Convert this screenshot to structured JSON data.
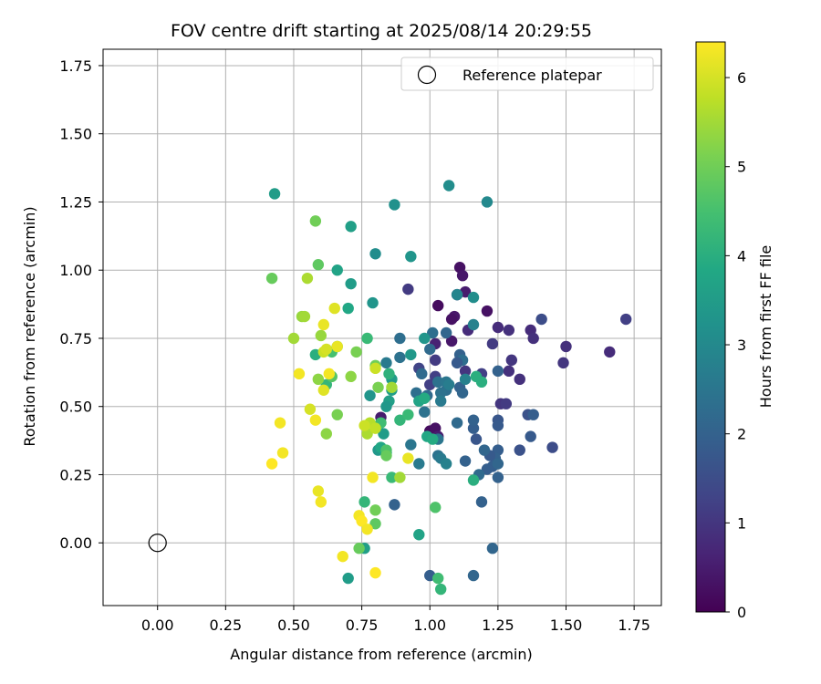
{
  "chart_data": {
    "type": "scatter",
    "title": "FOV centre drift starting at 2025/08/14 20:29:55",
    "xlabel": "Angular distance from reference (arcmin)",
    "ylabel": "Rotation from reference (arcmin)",
    "xlim": [
      -0.2,
      1.85
    ],
    "ylim": [
      -0.23,
      1.81
    ],
    "xticks": [
      0.0,
      0.25,
      0.5,
      0.75,
      1.0,
      1.25,
      1.5,
      1.75
    ],
    "xtick_labels": [
      "0.00",
      "0.25",
      "0.50",
      "0.75",
      "1.00",
      "1.25",
      "1.50",
      "1.75"
    ],
    "yticks": [
      0.0,
      0.25,
      0.5,
      0.75,
      1.0,
      1.25,
      1.5,
      1.75
    ],
    "ytick_labels": [
      "0.00",
      "0.25",
      "0.50",
      "0.75",
      "1.00",
      "1.25",
      "1.50",
      "1.75"
    ],
    "grid": true,
    "legend": {
      "placement": "upper right",
      "entries": [
        {
          "label": "Reference platepar",
          "marker": "open-circle"
        }
      ]
    },
    "reference_point": {
      "x": 0.0,
      "y": 0.0
    },
    "colorbar": {
      "label": "Hours from first FF file",
      "colormap": "viridis",
      "range": [
        0,
        6.4
      ],
      "ticks": [
        0,
        1,
        2,
        3,
        4,
        5,
        6
      ],
      "tick_labels": [
        "0",
        "1",
        "2",
        "3",
        "4",
        "5",
        "6"
      ]
    },
    "points": [
      {
        "x": 1.11,
        "y": 1.01,
        "h": 0.3
      },
      {
        "x": 1.12,
        "y": 0.98,
        "h": 0.4
      },
      {
        "x": 1.13,
        "y": 0.92,
        "h": 0.5
      },
      {
        "x": 1.09,
        "y": 0.83,
        "h": 0.4
      },
      {
        "x": 1.08,
        "y": 0.82,
        "h": 0.3
      },
      {
        "x": 1.03,
        "y": 0.87,
        "h": 0.2
      },
      {
        "x": 1.21,
        "y": 0.85,
        "h": 0.3
      },
      {
        "x": 1.08,
        "y": 0.74,
        "h": 0.4
      },
      {
        "x": 1.02,
        "y": 0.73,
        "h": 0.6
      },
      {
        "x": 1.0,
        "y": 0.41,
        "h": 0.2
      },
      {
        "x": 1.02,
        "y": 0.42,
        "h": 0.3
      },
      {
        "x": 1.03,
        "y": 0.39,
        "h": 0.5
      },
      {
        "x": 0.82,
        "y": 0.46,
        "h": 0.5
      },
      {
        "x": 1.1,
        "y": 0.91,
        "h": 0.7
      },
      {
        "x": 1.14,
        "y": 0.78,
        "h": 0.8
      },
      {
        "x": 1.25,
        "y": 0.79,
        "h": 0.8
      },
      {
        "x": 1.29,
        "y": 0.78,
        "h": 0.9
      },
      {
        "x": 1.37,
        "y": 0.78,
        "h": 0.8
      },
      {
        "x": 1.38,
        "y": 0.75,
        "h": 0.9
      },
      {
        "x": 1.29,
        "y": 0.63,
        "h": 0.9
      },
      {
        "x": 1.3,
        "y": 0.67,
        "h": 1.0
      },
      {
        "x": 1.33,
        "y": 0.6,
        "h": 0.9
      },
      {
        "x": 1.23,
        "y": 0.73,
        "h": 1.1
      },
      {
        "x": 1.19,
        "y": 0.62,
        "h": 1.2
      },
      {
        "x": 1.13,
        "y": 0.63,
        "h": 1.0
      },
      {
        "x": 1.02,
        "y": 0.67,
        "h": 1.1
      },
      {
        "x": 1.02,
        "y": 0.61,
        "h": 1.2
      },
      {
        "x": 0.96,
        "y": 0.64,
        "h": 1.3
      },
      {
        "x": 0.92,
        "y": 0.93,
        "h": 1.1
      },
      {
        "x": 1.0,
        "y": 0.58,
        "h": 1.2
      },
      {
        "x": 1.26,
        "y": 0.51,
        "h": 1.0
      },
      {
        "x": 1.28,
        "y": 0.51,
        "h": 1.1
      },
      {
        "x": 1.5,
        "y": 0.72,
        "h": 0.9
      },
      {
        "x": 1.49,
        "y": 0.66,
        "h": 1.0
      },
      {
        "x": 1.66,
        "y": 0.7,
        "h": 0.8
      },
      {
        "x": 1.72,
        "y": 0.82,
        "h": 1.2
      },
      {
        "x": 1.41,
        "y": 0.82,
        "h": 1.5
      },
      {
        "x": 1.45,
        "y": 0.35,
        "h": 1.5
      },
      {
        "x": 1.36,
        "y": 0.47,
        "h": 1.6
      },
      {
        "x": 1.38,
        "y": 0.47,
        "h": 1.9
      },
      {
        "x": 1.37,
        "y": 0.39,
        "h": 1.8
      },
      {
        "x": 1.33,
        "y": 0.34,
        "h": 1.6
      },
      {
        "x": 1.25,
        "y": 0.45,
        "h": 1.7
      },
      {
        "x": 1.25,
        "y": 0.43,
        "h": 1.8
      },
      {
        "x": 1.25,
        "y": 0.63,
        "h": 2.0
      },
      {
        "x": 1.25,
        "y": 0.34,
        "h": 1.9
      },
      {
        "x": 1.24,
        "y": 0.31,
        "h": 2.0
      },
      {
        "x": 1.23,
        "y": 0.28,
        "h": 1.9
      },
      {
        "x": 1.25,
        "y": 0.29,
        "h": 2.1
      },
      {
        "x": 1.22,
        "y": 0.32,
        "h": 1.8
      },
      {
        "x": 1.21,
        "y": 0.27,
        "h": 1.9
      },
      {
        "x": 1.25,
        "y": 0.24,
        "h": 2.0
      },
      {
        "x": 1.2,
        "y": 0.34,
        "h": 2.1
      },
      {
        "x": 1.17,
        "y": 0.38,
        "h": 1.7
      },
      {
        "x": 1.16,
        "y": 0.42,
        "h": 1.9
      },
      {
        "x": 1.16,
        "y": 0.45,
        "h": 2.0
      },
      {
        "x": 1.13,
        "y": 0.3,
        "h": 2.0
      },
      {
        "x": 1.18,
        "y": 0.25,
        "h": 2.2
      },
      {
        "x": 1.19,
        "y": 0.15,
        "h": 2.0
      },
      {
        "x": 1.23,
        "y": -0.02,
        "h": 2.1
      },
      {
        "x": 1.16,
        "y": -0.12,
        "h": 2.1
      },
      {
        "x": 1.0,
        "y": -0.12,
        "h": 1.9
      },
      {
        "x": 1.1,
        "y": 0.44,
        "h": 2.2
      },
      {
        "x": 1.11,
        "y": 0.57,
        "h": 2.0
      },
      {
        "x": 1.12,
        "y": 0.55,
        "h": 2.1
      },
      {
        "x": 1.11,
        "y": 0.69,
        "h": 2.0
      },
      {
        "x": 1.12,
        "y": 0.67,
        "h": 2.3
      },
      {
        "x": 1.1,
        "y": 0.66,
        "h": 1.8
      },
      {
        "x": 1.06,
        "y": 0.77,
        "h": 2.1
      },
      {
        "x": 1.01,
        "y": 0.77,
        "h": 2.3
      },
      {
        "x": 1.0,
        "y": 0.71,
        "h": 2.2
      },
      {
        "x": 1.03,
        "y": 0.59,
        "h": 2.4
      },
      {
        "x": 1.06,
        "y": 0.59,
        "h": 2.5
      },
      {
        "x": 1.06,
        "y": 0.56,
        "h": 2.3
      },
      {
        "x": 1.04,
        "y": 0.55,
        "h": 2.4
      },
      {
        "x": 1.04,
        "y": 0.52,
        "h": 2.6
      },
      {
        "x": 0.99,
        "y": 0.54,
        "h": 2.2
      },
      {
        "x": 0.98,
        "y": 0.48,
        "h": 2.4
      },
      {
        "x": 0.97,
        "y": 0.62,
        "h": 2.2
      },
      {
        "x": 0.95,
        "y": 0.55,
        "h": 2.3
      },
      {
        "x": 0.93,
        "y": 0.36,
        "h": 2.5
      },
      {
        "x": 0.96,
        "y": 0.29,
        "h": 2.6
      },
      {
        "x": 1.03,
        "y": 0.32,
        "h": 2.4
      },
      {
        "x": 1.04,
        "y": 0.31,
        "h": 2.6
      },
      {
        "x": 1.06,
        "y": 0.29,
        "h": 2.8
      },
      {
        "x": 1.03,
        "y": 0.38,
        "h": 2.5
      },
      {
        "x": 0.87,
        "y": 0.14,
        "h": 2.0
      },
      {
        "x": 0.89,
        "y": 0.75,
        "h": 2.3
      },
      {
        "x": 0.89,
        "y": 0.68,
        "h": 2.4
      },
      {
        "x": 0.84,
        "y": 0.66,
        "h": 2.6
      },
      {
        "x": 1.07,
        "y": 0.58,
        "h": 2.7
      },
      {
        "x": 1.13,
        "y": 0.6,
        "h": 2.8
      },
      {
        "x": 1.16,
        "y": 0.8,
        "h": 2.8
      },
      {
        "x": 1.16,
        "y": 0.9,
        "h": 3.1
      },
      {
        "x": 1.1,
        "y": 0.91,
        "h": 2.9
      },
      {
        "x": 1.21,
        "y": 1.25,
        "h": 3.0
      },
      {
        "x": 1.07,
        "y": 1.31,
        "h": 3.1
      },
      {
        "x": 0.87,
        "y": 1.24,
        "h": 3.2
      },
      {
        "x": 0.8,
        "y": 1.06,
        "h": 3.1
      },
      {
        "x": 0.93,
        "y": 1.05,
        "h": 3.3
      },
      {
        "x": 0.79,
        "y": 0.88,
        "h": 3.3
      },
      {
        "x": 0.71,
        "y": 0.95,
        "h": 3.5
      },
      {
        "x": 0.71,
        "y": 1.16,
        "h": 3.6
      },
      {
        "x": 0.66,
        "y": 1.0,
        "h": 3.7
      },
      {
        "x": 0.7,
        "y": 0.86,
        "h": 3.8
      },
      {
        "x": 0.43,
        "y": 1.28,
        "h": 3.5
      },
      {
        "x": 0.98,
        "y": 0.75,
        "h": 3.3
      },
      {
        "x": 0.93,
        "y": 0.69,
        "h": 3.4
      },
      {
        "x": 0.86,
        "y": 0.6,
        "h": 3.5
      },
      {
        "x": 0.85,
        "y": 0.52,
        "h": 3.6
      },
      {
        "x": 0.84,
        "y": 0.5,
        "h": 3.4
      },
      {
        "x": 0.86,
        "y": 0.56,
        "h": 3.6
      },
      {
        "x": 0.78,
        "y": 0.54,
        "h": 3.3
      },
      {
        "x": 0.83,
        "y": 0.4,
        "h": 3.5
      },
      {
        "x": 0.81,
        "y": 0.34,
        "h": 3.4
      },
      {
        "x": 0.82,
        "y": 0.35,
        "h": 3.8
      },
      {
        "x": 0.84,
        "y": 0.33,
        "h": 3.9
      },
      {
        "x": 0.96,
        "y": 0.52,
        "h": 3.7
      },
      {
        "x": 0.98,
        "y": 0.53,
        "h": 3.9
      },
      {
        "x": 0.99,
        "y": 0.39,
        "h": 3.8
      },
      {
        "x": 1.01,
        "y": 0.38,
        "h": 3.9
      },
      {
        "x": 1.16,
        "y": 0.23,
        "h": 4.0
      },
      {
        "x": 1.17,
        "y": 0.61,
        "h": 4.0
      },
      {
        "x": 1.19,
        "y": 0.59,
        "h": 4.0
      },
      {
        "x": 0.96,
        "y": 0.03,
        "h": 3.7
      },
      {
        "x": 0.7,
        "y": -0.13,
        "h": 3.5
      },
      {
        "x": 0.76,
        "y": -0.02,
        "h": 3.6
      },
      {
        "x": 1.04,
        "y": -0.17,
        "h": 4.2
      },
      {
        "x": 1.03,
        "y": -0.13,
        "h": 4.4
      },
      {
        "x": 0.76,
        "y": 0.15,
        "h": 4.2
      },
      {
        "x": 0.86,
        "y": 0.24,
        "h": 4.3
      },
      {
        "x": 0.89,
        "y": 0.45,
        "h": 4.2
      },
      {
        "x": 0.92,
        "y": 0.47,
        "h": 4.3
      },
      {
        "x": 0.85,
        "y": 0.62,
        "h": 4.1
      },
      {
        "x": 0.82,
        "y": 0.44,
        "h": 4.4
      },
      {
        "x": 0.77,
        "y": 0.75,
        "h": 4.3
      },
      {
        "x": 0.58,
        "y": 0.69,
        "h": 4.0
      },
      {
        "x": 0.62,
        "y": 0.58,
        "h": 4.2
      },
      {
        "x": 1.02,
        "y": 0.13,
        "h": 4.6
      },
      {
        "x": 0.8,
        "y": 0.07,
        "h": 4.8
      },
      {
        "x": 0.74,
        "y": -0.02,
        "h": 4.9
      },
      {
        "x": 0.84,
        "y": 0.34,
        "h": 4.6
      },
      {
        "x": 0.64,
        "y": 0.61,
        "h": 4.7
      },
      {
        "x": 0.66,
        "y": 0.72,
        "h": 4.6
      },
      {
        "x": 0.64,
        "y": 0.7,
        "h": 4.5
      },
      {
        "x": 0.59,
        "y": 1.02,
        "h": 4.8
      },
      {
        "x": 0.58,
        "y": 1.18,
        "h": 5.0
      },
      {
        "x": 0.42,
        "y": 0.97,
        "h": 4.9
      },
      {
        "x": 0.8,
        "y": 0.12,
        "h": 5.0
      },
      {
        "x": 0.8,
        "y": 0.65,
        "h": 5.0
      },
      {
        "x": 0.81,
        "y": 0.57,
        "h": 5.1
      },
      {
        "x": 0.84,
        "y": 0.32,
        "h": 4.9
      },
      {
        "x": 0.73,
        "y": 0.7,
        "h": 5.1
      },
      {
        "x": 0.71,
        "y": 0.61,
        "h": 5.3
      },
      {
        "x": 0.66,
        "y": 0.47,
        "h": 5.1
      },
      {
        "x": 0.62,
        "y": 0.4,
        "h": 5.3
      },
      {
        "x": 0.59,
        "y": 0.6,
        "h": 5.3
      },
      {
        "x": 0.6,
        "y": 0.76,
        "h": 5.4
      },
      {
        "x": 0.5,
        "y": 0.75,
        "h": 5.5
      },
      {
        "x": 0.53,
        "y": 0.83,
        "h": 5.4
      },
      {
        "x": 0.54,
        "y": 0.83,
        "h": 5.5
      },
      {
        "x": 0.55,
        "y": 0.97,
        "h": 5.6
      },
      {
        "x": 0.86,
        "y": 0.57,
        "h": 5.5
      },
      {
        "x": 0.89,
        "y": 0.24,
        "h": 5.5
      },
      {
        "x": 0.77,
        "y": 0.4,
        "h": 5.6
      },
      {
        "x": 0.78,
        "y": 0.44,
        "h": 5.7
      },
      {
        "x": 0.8,
        "y": 0.42,
        "h": 5.8
      },
      {
        "x": 0.76,
        "y": 0.43,
        "h": 5.9
      },
      {
        "x": 0.8,
        "y": 0.64,
        "h": 5.9
      },
      {
        "x": 0.61,
        "y": 0.7,
        "h": 5.9
      },
      {
        "x": 0.62,
        "y": 0.71,
        "h": 6.0
      },
      {
        "x": 0.56,
        "y": 0.49,
        "h": 6.0
      },
      {
        "x": 0.61,
        "y": 0.56,
        "h": 6.1
      },
      {
        "x": 0.61,
        "y": 0.8,
        "h": 6.2
      },
      {
        "x": 0.65,
        "y": 0.86,
        "h": 6.1
      },
      {
        "x": 0.66,
        "y": 0.72,
        "h": 6.2
      },
      {
        "x": 0.63,
        "y": 0.62,
        "h": 6.3
      },
      {
        "x": 0.58,
        "y": 0.45,
        "h": 6.3
      },
      {
        "x": 0.52,
        "y": 0.62,
        "h": 6.3
      },
      {
        "x": 0.45,
        "y": 0.44,
        "h": 6.3
      },
      {
        "x": 0.46,
        "y": 0.33,
        "h": 6.3
      },
      {
        "x": 0.42,
        "y": 0.29,
        "h": 6.4
      },
      {
        "x": 0.59,
        "y": 0.19,
        "h": 6.2
      },
      {
        "x": 0.6,
        "y": 0.15,
        "h": 6.3
      },
      {
        "x": 0.74,
        "y": 0.1,
        "h": 6.3
      },
      {
        "x": 0.75,
        "y": 0.08,
        "h": 6.4
      },
      {
        "x": 0.77,
        "y": 0.05,
        "h": 6.3
      },
      {
        "x": 0.68,
        "y": -0.05,
        "h": 6.3
      },
      {
        "x": 0.8,
        "y": -0.11,
        "h": 6.4
      },
      {
        "x": 0.79,
        "y": 0.24,
        "h": 6.3
      },
      {
        "x": 0.92,
        "y": 0.31,
        "h": 6.2
      }
    ]
  }
}
